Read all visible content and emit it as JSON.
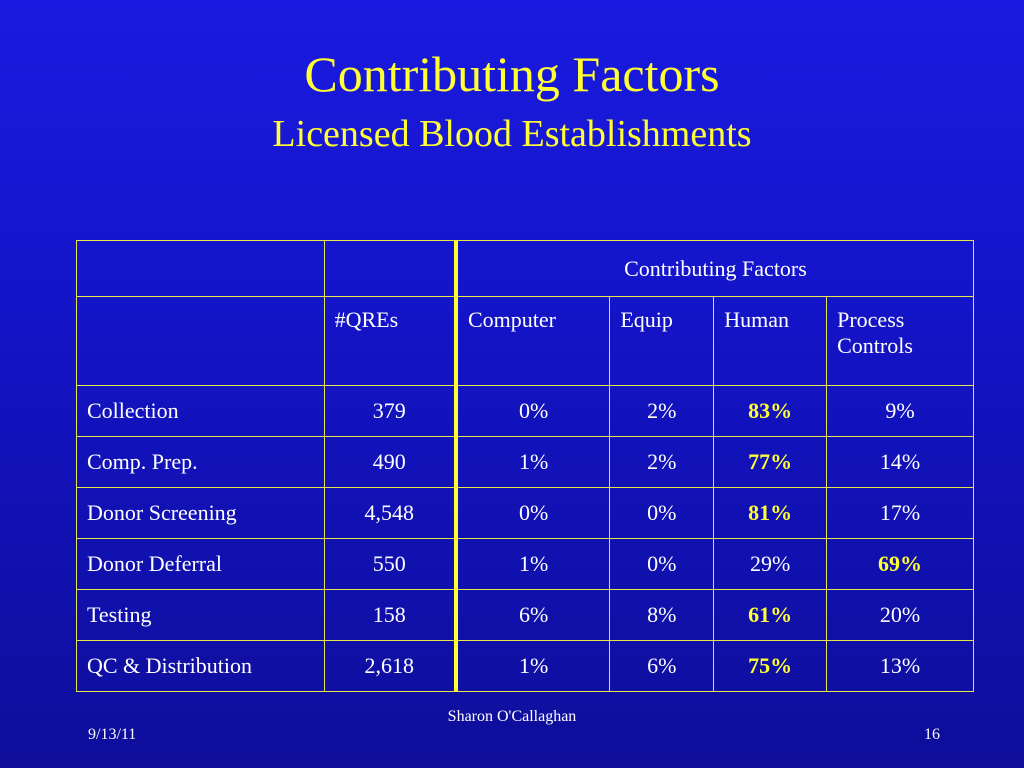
{
  "slide": {
    "title": "Contributing Factors",
    "subtitle": "Licensed Blood Establishments"
  },
  "table": {
    "group_header": "Contributing Factors",
    "columns": [
      "",
      "#QREs",
      "Computer",
      "Equip",
      "Human",
      "Process Controls"
    ],
    "rows": [
      {
        "label": "Collection",
        "qres": "379",
        "computer": "0%",
        "equip": "2%",
        "human": "83%",
        "process": "9%"
      },
      {
        "label": "Comp. Prep.",
        "qres": "490",
        "computer": "1%",
        "equip": "2%",
        "human": "77%",
        "process": "14%"
      },
      {
        "label": "Donor Screening",
        "qres": "4,548",
        "computer": "0%",
        "equip": "0%",
        "human": "81%",
        "process": "17%"
      },
      {
        "label": "Donor Deferral",
        "qres": "550",
        "computer": "1%",
        "equip": "0%",
        "human": "29%",
        "process": "69%"
      },
      {
        "label": "Testing",
        "qres": "158",
        "computer": "6%",
        "equip": "8%",
        "human": "61%",
        "process": "20%"
      },
      {
        "label": "QC & Distribution",
        "qres": "2,618",
        "computer": "1%",
        "equip": "6%",
        "human": "75%",
        "process": "13%"
      }
    ]
  },
  "footer": {
    "date": "9/13/11",
    "author": "Sharon O'Callaghan",
    "page": "16"
  },
  "colors": {
    "background": "#1414c8",
    "title": "#ffff33",
    "highlight": "#ffff33",
    "border": "#e6e64a",
    "text": "#ffffff"
  }
}
